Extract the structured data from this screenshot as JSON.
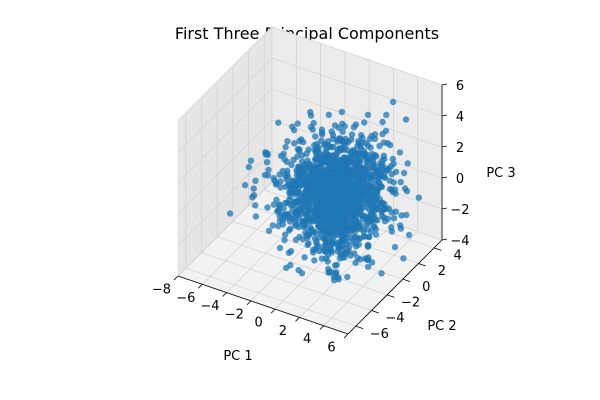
{
  "chart_data": {
    "type": "scatter",
    "projection": "3d",
    "title": "First Three Principal Components",
    "xlabel": "PC 1",
    "ylabel": "PC 2",
    "zlabel": "PC 3",
    "xlim": [
      -8,
      6
    ],
    "ylim": [
      -7,
      5
    ],
    "zlim": [
      -4,
      6
    ],
    "xticks": [
      "−8",
      "−6",
      "−4",
      "−2",
      "0",
      "2",
      "4",
      "6"
    ],
    "yticks": [
      "−6",
      "−4",
      "−2",
      "0",
      "2",
      "4"
    ],
    "zticks": [
      "−4",
      "−2",
      "0",
      "2",
      "4",
      "6"
    ],
    "grid": true,
    "marker_color": "#1f77b4",
    "point_count_estimate": 1500,
    "cluster": {
      "center": [
        0.5,
        0.0,
        0.0
      ],
      "spread": [
        1.8,
        2.0,
        1.5
      ]
    },
    "outliers": [
      [
        -7.0,
        0.5,
        -0.5
      ],
      [
        -6.5,
        0.0,
        0.3
      ],
      [
        -6.0,
        1.0,
        -1.0
      ],
      [
        -5.5,
        0.5,
        0.8
      ],
      [
        -5.0,
        -0.5,
        1.5
      ],
      [
        -4.5,
        1.5,
        0.0
      ],
      [
        -6.8,
        -0.3,
        -1.2
      ],
      [
        -5.8,
        0.8,
        0.5
      ],
      [
        -4.8,
        2.0,
        1.0
      ],
      [
        -3.5,
        3.0,
        2.5
      ],
      [
        -2.5,
        -2.5,
        -3.0
      ],
      [
        -1.0,
        -3.5,
        -3.2
      ],
      [
        0.0,
        -4.0,
        -3.0
      ],
      [
        3.0,
        2.5,
        3.5
      ],
      [
        4.0,
        3.5,
        4.0
      ],
      [
        2.5,
        -3.0,
        -2.5
      ]
    ]
  }
}
